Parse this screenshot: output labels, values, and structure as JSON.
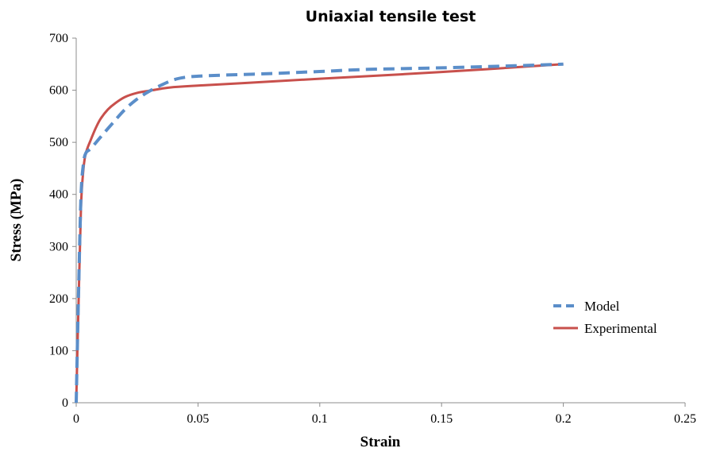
{
  "chart_data": {
    "type": "line",
    "title": "Uniaxial tensile test",
    "xlabel": "Strain",
    "ylabel": "Stress (MPa)",
    "xlim": [
      0,
      0.25
    ],
    "ylim": [
      0,
      700
    ],
    "xticks": [
      "0",
      "0.05",
      "0.1",
      "0.15",
      "0.2",
      "0.25"
    ],
    "xtick_values": [
      0,
      0.05,
      0.1,
      0.15,
      0.2,
      0.25
    ],
    "yticks": [
      "0",
      "100",
      "200",
      "300",
      "400",
      "500",
      "600",
      "700"
    ],
    "ytick_values": [
      0,
      100,
      200,
      300,
      400,
      500,
      600,
      700
    ],
    "grid": false,
    "legend_position": "right",
    "series": [
      {
        "name": "Model",
        "color": "#5b8ec9",
        "dash": "dashed",
        "x": [
          0,
          0.001,
          0.002,
          0.003,
          0.004,
          0.006,
          0.01,
          0.015,
          0.02,
          0.025,
          0.03,
          0.035,
          0.04,
          0.045,
          0.05,
          0.06,
          0.08,
          0.1,
          0.12,
          0.15,
          0.18,
          0.2
        ],
        "y": [
          0,
          220,
          400,
          460,
          480,
          488,
          510,
          537,
          563,
          583,
          598,
          610,
          620,
          625,
          627,
          629,
          632,
          636,
          640,
          643,
          647,
          650
        ]
      },
      {
        "name": "Experimental",
        "color": "#c8504c",
        "dash": "solid",
        "x": [
          0,
          0.001,
          0.002,
          0.003,
          0.004,
          0.006,
          0.008,
          0.01,
          0.013,
          0.016,
          0.02,
          0.025,
          0.03,
          0.035,
          0.04,
          0.05,
          0.07,
          0.1,
          0.15,
          0.2
        ],
        "y": [
          0,
          200,
          380,
          450,
          480,
          505,
          527,
          545,
          563,
          575,
          587,
          595,
          599,
          603,
          606,
          609,
          614,
          622,
          635,
          650
        ]
      }
    ]
  }
}
